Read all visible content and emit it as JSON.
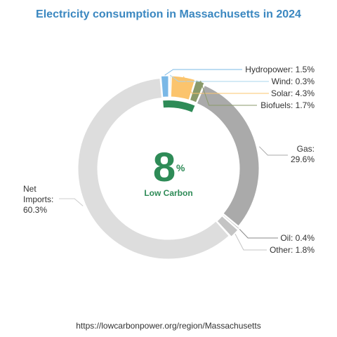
{
  "chart_data": {
    "type": "pie",
    "title": "Electricity consumption in Massachusetts in 2024",
    "slices": [
      {
        "name": "Hydropower",
        "label": "Hydropower: 1.5%",
        "value": 1.5,
        "color": "#7ab8e6"
      },
      {
        "name": "Wind",
        "label": "Wind: 0.3%",
        "value": 0.3,
        "color": "#a8d4ee"
      },
      {
        "name": "Solar",
        "label": "Solar: 4.3%",
        "value": 4.3,
        "color": "#fbc46d"
      },
      {
        "name": "Biofuels",
        "label": "Biofuels: 1.7%",
        "value": 1.7,
        "color": "#8a9a6a"
      },
      {
        "name": "Gas",
        "label_lines": [
          "Gas:",
          "29.6%"
        ],
        "value": 29.6,
        "color": "#aaaaaa"
      },
      {
        "name": "Oil",
        "label": "Oil: 0.4%",
        "value": 0.4,
        "color": "#888888"
      },
      {
        "name": "Other",
        "label": "Other: 1.8%",
        "value": 1.8,
        "color": "#c4c4c4"
      },
      {
        "name": "Net Imports",
        "label_lines": [
          "Net",
          "Imports:",
          "60.3%"
        ],
        "value": 60.3,
        "color": "#dddddd"
      }
    ],
    "center": {
      "value": "8",
      "unit": "%",
      "caption": "Low Carbon",
      "color": "#2e8b57",
      "low_carbon_share": 7.8
    }
  },
  "footer": {
    "source": "https://lowcarbonpower.org/region/Massachusetts"
  }
}
